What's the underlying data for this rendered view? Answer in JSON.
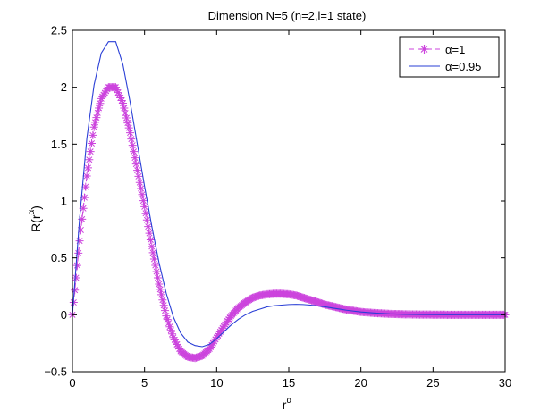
{
  "chart_data": {
    "type": "line",
    "title": "Dimension N=5 (n=2,l=1 state)",
    "xlabel": {
      "base": "r",
      "sup": "α"
    },
    "ylabel": {
      "prefix": "R(r",
      "sup": "α",
      "suffix": ")"
    },
    "xlim": [
      0,
      30
    ],
    "ylim": [
      -0.5,
      2.5
    ],
    "xticks": [
      0,
      5,
      10,
      15,
      20,
      25,
      30
    ],
    "yticks": [
      -0.5,
      0,
      0.5,
      1,
      1.5,
      2,
      2.5
    ],
    "xtick_labels": [
      "0",
      "5",
      "10",
      "15",
      "20",
      "25",
      "30"
    ],
    "ytick_labels": [
      "−0.5",
      "0",
      "0.5",
      "1",
      "1.5",
      "2",
      "2.5"
    ],
    "grid": false,
    "legend_position": "top-right",
    "series": [
      {
        "name": "α=1",
        "color": "#cc44dd",
        "style": "dashed-with-star-markers",
        "x": [
          0,
          0.5,
          1,
          1.5,
          2,
          2.5,
          3,
          3.5,
          4,
          4.5,
          5,
          5.5,
          6,
          6.5,
          7,
          7.5,
          8,
          8.5,
          9,
          9.5,
          10,
          10.5,
          11,
          11.5,
          12,
          12.5,
          13,
          13.5,
          14,
          14.5,
          15,
          15.5,
          16,
          16.5,
          17,
          17.5,
          18,
          18.5,
          19,
          19.5,
          20,
          21,
          22,
          23,
          24,
          25,
          26,
          27,
          28,
          29,
          30
        ],
        "y": [
          0,
          0.65,
          1.22,
          1.65,
          1.9,
          2.0,
          2.0,
          1.86,
          1.6,
          1.27,
          0.95,
          0.6,
          0.27,
          -0.01,
          -0.2,
          -0.32,
          -0.37,
          -0.38,
          -0.36,
          -0.3,
          -0.2,
          -0.1,
          -0.01,
          0.06,
          0.11,
          0.15,
          0.17,
          0.18,
          0.185,
          0.185,
          0.18,
          0.17,
          0.15,
          0.13,
          0.11,
          0.09,
          0.075,
          0.06,
          0.045,
          0.035,
          0.025,
          0.015,
          0.008,
          0.004,
          0.002,
          0.001,
          0,
          0,
          0,
          0,
          0
        ]
      },
      {
        "name": "α=0.95",
        "color": "#2a3fd6",
        "style": "solid",
        "x": [
          0,
          0.5,
          1,
          1.5,
          2,
          2.5,
          3,
          3.5,
          4,
          4.5,
          5,
          5.5,
          6,
          6.5,
          7,
          7.5,
          8,
          8.5,
          9,
          9.5,
          10,
          10.5,
          11,
          11.5,
          12,
          12.5,
          13,
          13.5,
          14,
          14.5,
          15,
          15.5,
          16,
          16.5,
          17,
          17.5,
          18,
          18.5,
          19,
          19.5,
          20,
          21,
          22,
          23,
          24,
          25,
          26,
          27,
          28,
          29,
          30
        ],
        "y": [
          0,
          0.85,
          1.55,
          2.02,
          2.3,
          2.4,
          2.4,
          2.2,
          1.87,
          1.5,
          1.13,
          0.78,
          0.46,
          0.19,
          -0.02,
          -0.16,
          -0.24,
          -0.27,
          -0.28,
          -0.26,
          -0.21,
          -0.15,
          -0.09,
          -0.04,
          0.0,
          0.03,
          0.05,
          0.07,
          0.08,
          0.085,
          0.09,
          0.092,
          0.09,
          0.085,
          0.078,
          0.07,
          0.06,
          0.05,
          0.04,
          0.032,
          0.025,
          0.015,
          0.008,
          0.004,
          0.002,
          0.001,
          0,
          0,
          0,
          0,
          0
        ]
      }
    ]
  }
}
